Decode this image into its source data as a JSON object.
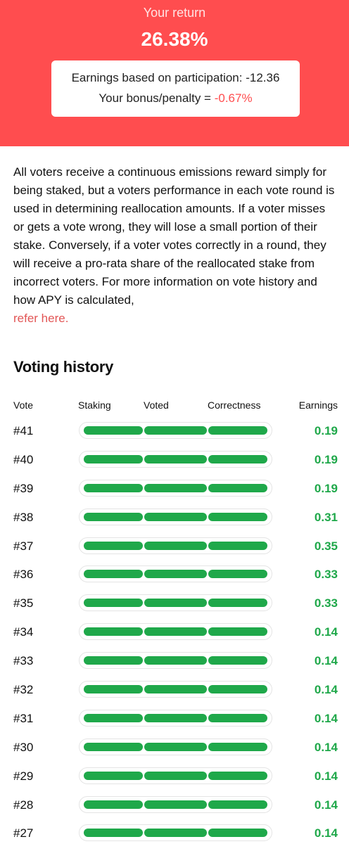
{
  "header": {
    "label": "Your return",
    "value": "26.38%",
    "earnings_line": "Earnings based on participation: -12.36",
    "bonus_label": "Your bonus/penalty = ",
    "bonus_value": "-0.67%"
  },
  "description": {
    "text": "All voters receive a continuous emissions reward simply for being staked, but a voters performance in each vote round is used in determining reallocation amounts. If a voter misses or gets a vote wrong, they will lose a small portion of their stake. Conversely, if a voter votes correctly in a round, they will receive a pro-rata share of the reallocated stake from incorrect voters. For more information on vote history and how APY is calculated,",
    "link_label": "refer here."
  },
  "voting_history": {
    "title": "Voting history",
    "columns": {
      "vote": "Vote",
      "staking": "Staking",
      "voted": "Voted",
      "correctness": "Correctness",
      "earnings": "Earnings"
    },
    "rows": [
      {
        "vote": "#41",
        "earnings": "0.19"
      },
      {
        "vote": "#40",
        "earnings": "0.19"
      },
      {
        "vote": "#39",
        "earnings": "0.19"
      },
      {
        "vote": "#38",
        "earnings": "0.31"
      },
      {
        "vote": "#37",
        "earnings": "0.35"
      },
      {
        "vote": "#36",
        "earnings": "0.33"
      },
      {
        "vote": "#35",
        "earnings": "0.33"
      },
      {
        "vote": "#34",
        "earnings": "0.14"
      },
      {
        "vote": "#33",
        "earnings": "0.14"
      },
      {
        "vote": "#32",
        "earnings": "0.14"
      },
      {
        "vote": "#31",
        "earnings": "0.14"
      },
      {
        "vote": "#30",
        "earnings": "0.14"
      },
      {
        "vote": "#29",
        "earnings": "0.14"
      },
      {
        "vote": "#28",
        "earnings": "0.14"
      },
      {
        "vote": "#27",
        "earnings": "0.14"
      }
    ]
  },
  "colors": {
    "header_bg": "#ff4d4f",
    "success": "#1fa84a",
    "link": "#e25656"
  }
}
